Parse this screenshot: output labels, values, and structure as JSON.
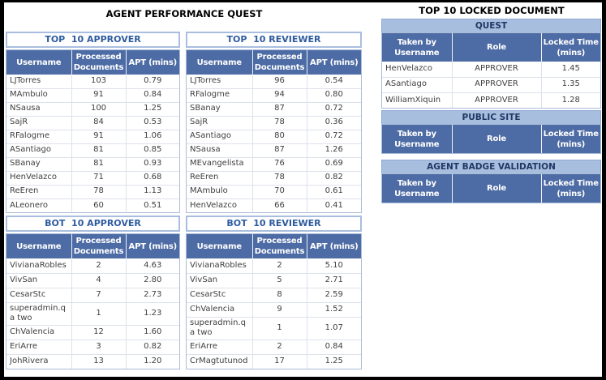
{
  "colors": {
    "frame_border": "#000000",
    "header_bg": "#4d6ba4",
    "header_text": "#ffffff",
    "band_bg": "#a8bedf",
    "band_text": "#1f3864",
    "section_title_text": "#2e5b9f",
    "section_title_border": "#a9bede",
    "page_title_text": "#000000",
    "grid_border": "#dce1eb",
    "table_outer_border": "#a9bcd9",
    "cell_text": "#3f3f3f"
  },
  "left_panel": {
    "title": "AGENT PERFORMANCE QUEST",
    "columns": [
      "Username",
      "Processed Documents",
      "APT (mins)"
    ],
    "tables": {
      "top_approver": {
        "title": "TOP  10 APPROVER",
        "rows": [
          [
            "LJTorres",
            "103",
            "0.79"
          ],
          [
            "MAmbulo",
            "91",
            "0.84"
          ],
          [
            "NSausa",
            "100",
            "1.25"
          ],
          [
            "SajR",
            "84",
            "0.53"
          ],
          [
            "RFalogme",
            "91",
            "1.06"
          ],
          [
            "ASantiago",
            "81",
            "0.85"
          ],
          [
            "SBanay",
            "81",
            "0.93"
          ],
          [
            "HenVelazco",
            "71",
            "0.68"
          ],
          [
            "ReEren",
            "78",
            "1.13"
          ],
          [
            "ALeonero",
            "60",
            "0.51"
          ]
        ]
      },
      "top_reviewer": {
        "title": "TOP  10 REVIEWER",
        "rows": [
          [
            "LJTorres",
            "96",
            "0.54"
          ],
          [
            "RFalogme",
            "94",
            "0.80"
          ],
          [
            "SBanay",
            "87",
            "0.72"
          ],
          [
            "SajR",
            "78",
            "0.36"
          ],
          [
            "ASantiago",
            "80",
            "0.72"
          ],
          [
            "NSausa",
            "87",
            "1.26"
          ],
          [
            "MEvangelista",
            "76",
            "0.69"
          ],
          [
            "ReEren",
            "78",
            "0.82"
          ],
          [
            "MAmbulo",
            "70",
            "0.61"
          ],
          [
            "HenVelazco",
            "66",
            "0.41"
          ]
        ]
      },
      "bot_approver": {
        "title": "BOT  10 APPROVER",
        "rows": [
          [
            "VivianaRobles",
            "2",
            "4.63"
          ],
          [
            "VivSan",
            "4",
            "2.80"
          ],
          [
            "CesarStc",
            "7",
            "2.73"
          ],
          [
            "superadmin.qa two",
            "1",
            "1.23"
          ],
          [
            "ChValencia",
            "12",
            "1.60"
          ],
          [
            "EriArre",
            "3",
            "0.82"
          ],
          [
            "JohRivera",
            "13",
            "1.20"
          ]
        ]
      },
      "bot_reviewer": {
        "title": "BOT  10 REVIEWER",
        "rows": [
          [
            "VivianaRobles",
            "2",
            "5.10"
          ],
          [
            "VivSan",
            "5",
            "2.71"
          ],
          [
            "CesarStc",
            "8",
            "2.59"
          ],
          [
            "ChValencia",
            "9",
            "1.52"
          ],
          [
            "superadmin.qa two",
            "1",
            "1.07"
          ],
          [
            "EriArre",
            "2",
            "0.84"
          ],
          [
            "CrMagtutunod",
            "17",
            "1.25"
          ]
        ]
      }
    }
  },
  "right_panel": {
    "title": "TOP 10 LOCKED DOCUMENT",
    "columns": [
      "Taken by Username",
      "Role",
      "Locked Time (mins)"
    ],
    "tables": {
      "quest": {
        "title": "QUEST",
        "rows": [
          [
            "HenVelazco",
            "APPROVER",
            "1.45"
          ],
          [
            "ASantiago",
            "APPROVER",
            "1.35"
          ],
          [
            "WilliamXiquin",
            "APPROVER",
            "1.28"
          ]
        ]
      },
      "public_site": {
        "title": "PUBLIC SITE",
        "rows": []
      },
      "agent_badge_validation": {
        "title": "AGENT BADGE VALIDATION",
        "rows": []
      }
    }
  }
}
